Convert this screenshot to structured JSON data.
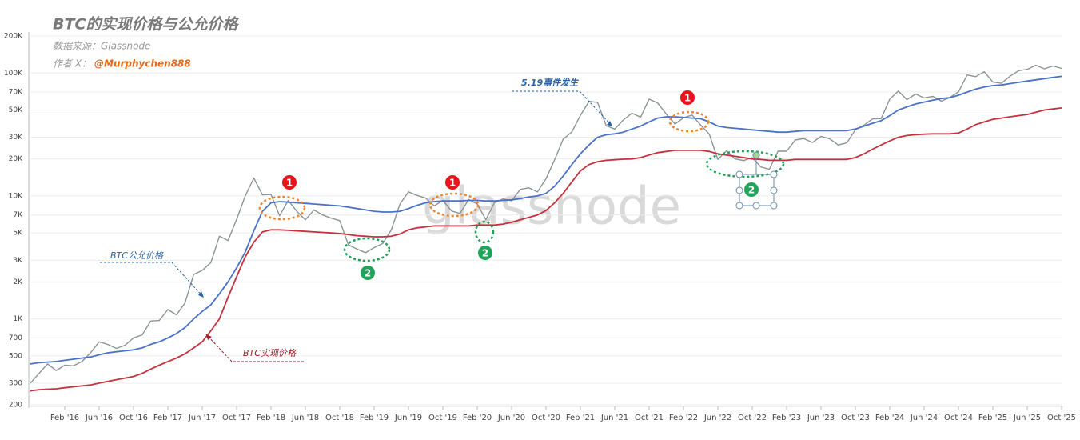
{
  "chart_data": {
    "type": "line",
    "title": "BTC的实现价格与公允价格",
    "source": "数据来源：Glassnode",
    "author_prefix": "作者 X：",
    "author": "@Murphychen888",
    "watermark": "glassnode",
    "event_label": "5.19事件发生",
    "badges": [
      "1",
      "2"
    ],
    "log_scale": true,
    "grid": true,
    "xlim": [
      "2015-10",
      "2025-10"
    ],
    "ylim": [
      200,
      200000
    ],
    "yticks": [
      200,
      300,
      500,
      700,
      {
        "value": 1000,
        "label": "1K"
      },
      {
        "value": 2000,
        "label": "2K"
      },
      {
        "value": 3000,
        "label": "3K"
      },
      {
        "value": 5000,
        "label": "5K"
      },
      {
        "value": 7000,
        "label": "7K"
      },
      {
        "value": 10000,
        "label": "10K"
      },
      {
        "value": 20000,
        "label": "20K"
      },
      {
        "value": 30000,
        "label": "30K"
      },
      {
        "value": 50000,
        "label": "50K"
      },
      {
        "value": 70000,
        "label": "70K"
      },
      {
        "value": 100000,
        "label": "100K"
      },
      {
        "value": 200000,
        "label": "200K"
      }
    ],
    "xticks": [
      {
        "value": "2016-02",
        "label": "Feb '16"
      },
      {
        "value": "2016-06",
        "label": "Jun '16"
      },
      {
        "value": "2016-10",
        "label": "Oct '16"
      },
      {
        "value": "2017-02",
        "label": "Feb '17"
      },
      {
        "value": "2017-06",
        "label": "Jun '17"
      },
      {
        "value": "2017-10",
        "label": "Oct '17"
      },
      {
        "value": "2018-02",
        "label": "Feb '18"
      },
      {
        "value": "2018-06",
        "label": "Jun '18"
      },
      {
        "value": "2018-10",
        "label": "Oct '18"
      },
      {
        "value": "2019-02",
        "label": "Feb '19"
      },
      {
        "value": "2019-06",
        "label": "Jun '19"
      },
      {
        "value": "2019-10",
        "label": "Oct '19"
      },
      {
        "value": "2020-02",
        "label": "Feb '20"
      },
      {
        "value": "2020-06",
        "label": "Jun '20"
      },
      {
        "value": "2020-10",
        "label": "Oct '20"
      },
      {
        "value": "2021-02",
        "label": "Feb '21"
      },
      {
        "value": "2021-06",
        "label": "Jun '21"
      },
      {
        "value": "2021-10",
        "label": "Oct '21"
      },
      {
        "value": "2022-02",
        "label": "Feb '22"
      },
      {
        "value": "2022-06",
        "label": "Jun '22"
      },
      {
        "value": "2022-10",
        "label": "Oct '22"
      },
      {
        "value": "2023-02",
        "label": "Feb '23"
      },
      {
        "value": "2023-06",
        "label": "Jun '23"
      },
      {
        "value": "2023-10",
        "label": "Oct '23"
      },
      {
        "value": "2024-02",
        "label": "Feb '24"
      },
      {
        "value": "2024-06",
        "label": "Jun '24"
      },
      {
        "value": "2024-10",
        "label": "Oct '24"
      },
      {
        "value": "2025-02",
        "label": "Feb '25"
      },
      {
        "value": "2025-06",
        "label": "Jun '25"
      },
      {
        "value": "2025-10",
        "label": "Oct '25"
      }
    ],
    "x": [
      "2015-10",
      "2015-11",
      "2015-12",
      "2016-01",
      "2016-02",
      "2016-03",
      "2016-04",
      "2016-05",
      "2016-06",
      "2016-07",
      "2016-08",
      "2016-09",
      "2016-10",
      "2016-11",
      "2016-12",
      "2017-01",
      "2017-02",
      "2017-03",
      "2017-04",
      "2017-05",
      "2017-06",
      "2017-07",
      "2017-08",
      "2017-09",
      "2017-10",
      "2017-11",
      "2017-12",
      "2018-01",
      "2018-02",
      "2018-03",
      "2018-04",
      "2018-05",
      "2018-06",
      "2018-07",
      "2018-08",
      "2018-09",
      "2018-10",
      "2018-11",
      "2018-12",
      "2019-01",
      "2019-02",
      "2019-03",
      "2019-04",
      "2019-05",
      "2019-06",
      "2019-07",
      "2019-08",
      "2019-09",
      "2019-10",
      "2019-11",
      "2019-12",
      "2020-01",
      "2020-02",
      "2020-03",
      "2020-04",
      "2020-05",
      "2020-06",
      "2020-07",
      "2020-08",
      "2020-09",
      "2020-10",
      "2020-11",
      "2020-12",
      "2021-01",
      "2021-02",
      "2021-03",
      "2021-04",
      "2021-05",
      "2021-06",
      "2021-07",
      "2021-08",
      "2021-09",
      "2021-10",
      "2021-11",
      "2021-12",
      "2022-01",
      "2022-02",
      "2022-03",
      "2022-04",
      "2022-05",
      "2022-06",
      "2022-07",
      "2022-08",
      "2022-09",
      "2022-10",
      "2022-11",
      "2022-12",
      "2023-01",
      "2023-02",
      "2023-03",
      "2023-04",
      "2023-05",
      "2023-06",
      "2023-07",
      "2023-08",
      "2023-09",
      "2023-10",
      "2023-11",
      "2023-12",
      "2024-01",
      "2024-02",
      "2024-03",
      "2024-04",
      "2024-05",
      "2024-06",
      "2024-07",
      "2024-08",
      "2024-09",
      "2024-10",
      "2024-11",
      "2024-12",
      "2025-01",
      "2025-02",
      "2025-03",
      "2025-04",
      "2025-05",
      "2025-06",
      "2025-07",
      "2025-08",
      "2025-09",
      "2025-10"
    ],
    "series": [
      {
        "color": "#8c9496",
        "values": [
          300,
          360,
          430,
          380,
          420,
          415,
          450,
          530,
          650,
          620,
          575,
          610,
          700,
          740,
          960,
          970,
          1190,
          1080,
          1350,
          2300,
          2480,
          2870,
          4700,
          4340,
          6450,
          10000,
          14000,
          10200,
          10300,
          6900,
          9200,
          7500,
          6400,
          7700,
          7000,
          6600,
          6300,
          4000,
          3700,
          3450,
          3800,
          4100,
          5300,
          8600,
          10800,
          10100,
          9600,
          8300,
          9200,
          7550,
          7200,
          9350,
          8600,
          6400,
          8800,
          9450,
          9140,
          11300,
          11650,
          10780,
          13800,
          19700,
          29000,
          33100,
          45200,
          58800,
          57700,
          37300,
          35000,
          41500,
          47100,
          43800,
          61300,
          57000,
          46300,
          38500,
          43200,
          45500,
          37700,
          31800,
          19800,
          23300,
          20000,
          19400,
          20500,
          17200,
          16500,
          23100,
          23100,
          28500,
          29300,
          27200,
          30500,
          29200,
          26000,
          27000,
          34500,
          37700,
          42300,
          42600,
          61200,
          71300,
          60700,
          67500,
          62700,
          64600,
          59000,
          63300,
          70200,
          96400,
          93400,
          102400,
          84400,
          82500,
          94200,
          104600,
          107100,
          115800,
          108200,
          114000,
          109000
        ]
      },
      {
        "name": "BTC公允价格",
        "color": "#4a72c9",
        "values": [
          430,
          440,
          445,
          450,
          460,
          470,
          480,
          490,
          510,
          530,
          540,
          550,
          560,
          580,
          620,
          650,
          700,
          760,
          850,
          1000,
          1150,
          1300,
          1600,
          2000,
          2600,
          3500,
          5200,
          7500,
          8800,
          9000,
          8900,
          8800,
          8700,
          8600,
          8500,
          8400,
          8300,
          8100,
          7900,
          7700,
          7500,
          7400,
          7400,
          7500,
          7900,
          8400,
          8800,
          9000,
          9100,
          9100,
          9100,
          9200,
          9200,
          9100,
          9100,
          9200,
          9300,
          9500,
          9800,
          10000,
          10500,
          12000,
          14500,
          18000,
          22000,
          26000,
          30000,
          31500,
          32000,
          33000,
          35000,
          37000,
          40000,
          43000,
          44000,
          44000,
          43500,
          43000,
          42500,
          40000,
          37000,
          36000,
          35500,
          35000,
          34500,
          34000,
          33500,
          33000,
          33000,
          33500,
          34000,
          34000,
          34000,
          34000,
          34000,
          34000,
          35000,
          37000,
          39000,
          41000,
          45000,
          50000,
          53000,
          56000,
          58000,
          60000,
          62000,
          63000,
          66000,
          70000,
          74000,
          77000,
          79000,
          80000,
          82000,
          84000,
          86000,
          88000,
          90000,
          92000,
          94000
        ]
      },
      {
        "name": "BTC实现价格",
        "color": "#c8303e",
        "values": [
          260,
          265,
          268,
          270,
          275,
          280,
          285,
          290,
          300,
          310,
          320,
          330,
          340,
          360,
          390,
          420,
          450,
          480,
          520,
          580,
          650,
          800,
          1000,
          1500,
          2200,
          3200,
          4200,
          5100,
          5300,
          5300,
          5250,
          5200,
          5150,
          5100,
          5050,
          5000,
          4950,
          4850,
          4750,
          4700,
          4650,
          4650,
          4700,
          4900,
          5300,
          5500,
          5600,
          5700,
          5700,
          5700,
          5700,
          5700,
          5800,
          5800,
          5800,
          5900,
          6100,
          6400,
          6700,
          7000,
          7600,
          8800,
          10500,
          13000,
          16000,
          18000,
          19000,
          19500,
          19700,
          19900,
          20000,
          20500,
          21500,
          22500,
          23000,
          23500,
          23500,
          23500,
          23500,
          23000,
          22000,
          21500,
          21000,
          20500,
          20000,
          19800,
          19500,
          19500,
          19500,
          19800,
          19800,
          19800,
          19800,
          19800,
          19800,
          19800,
          20500,
          22000,
          24000,
          26000,
          28000,
          30000,
          31000,
          31500,
          31800,
          32000,
          32000,
          32000,
          32500,
          35000,
          38000,
          40000,
          42000,
          43000,
          44000,
          45000,
          46000,
          48000,
          50000,
          51000,
          52000
        ]
      }
    ]
  }
}
